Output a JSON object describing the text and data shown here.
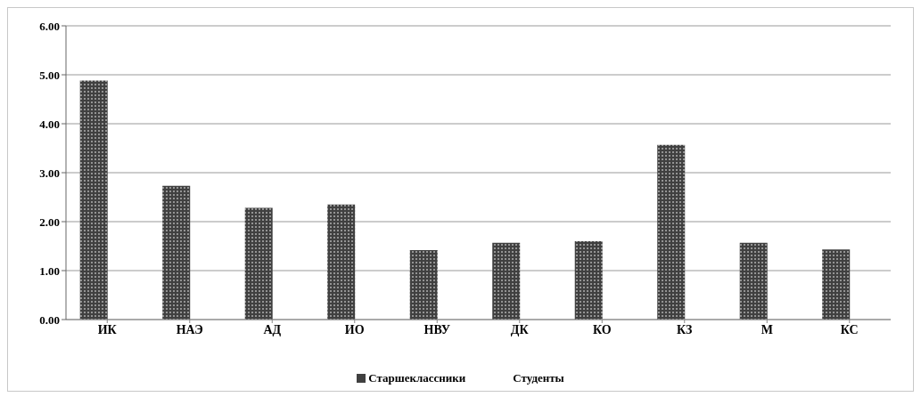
{
  "chart_data": {
    "type": "bar",
    "categories": [
      "ИК",
      "НАЭ",
      "АД",
      "ИО",
      "НВУ",
      "ДК",
      "КО",
      "КЗ",
      "М",
      "КС"
    ],
    "series": [
      {
        "name": "Старшеклассники",
        "color": "#404040",
        "values": [
          4.88,
          2.73,
          2.28,
          2.35,
          1.42,
          1.57,
          1.6,
          3.57,
          1.57,
          1.43
        ]
      },
      {
        "name": "Студенты",
        "values": [
          null,
          null,
          null,
          null,
          null,
          null,
          null,
          null,
          null,
          null
        ]
      }
    ],
    "ylim": [
      0,
      6
    ],
    "yticks": [
      {
        "value": 0,
        "label": "0.00"
      },
      {
        "value": 1,
        "label": "1.00"
      },
      {
        "value": 2,
        "label": "2.00"
      },
      {
        "value": 3,
        "label": "3.00"
      },
      {
        "value": 4,
        "label": "4.00"
      },
      {
        "value": 5,
        "label": "5.00"
      },
      {
        "value": 6,
        "label": "6.00"
      }
    ],
    "grid": "y",
    "legend": "bottom"
  }
}
